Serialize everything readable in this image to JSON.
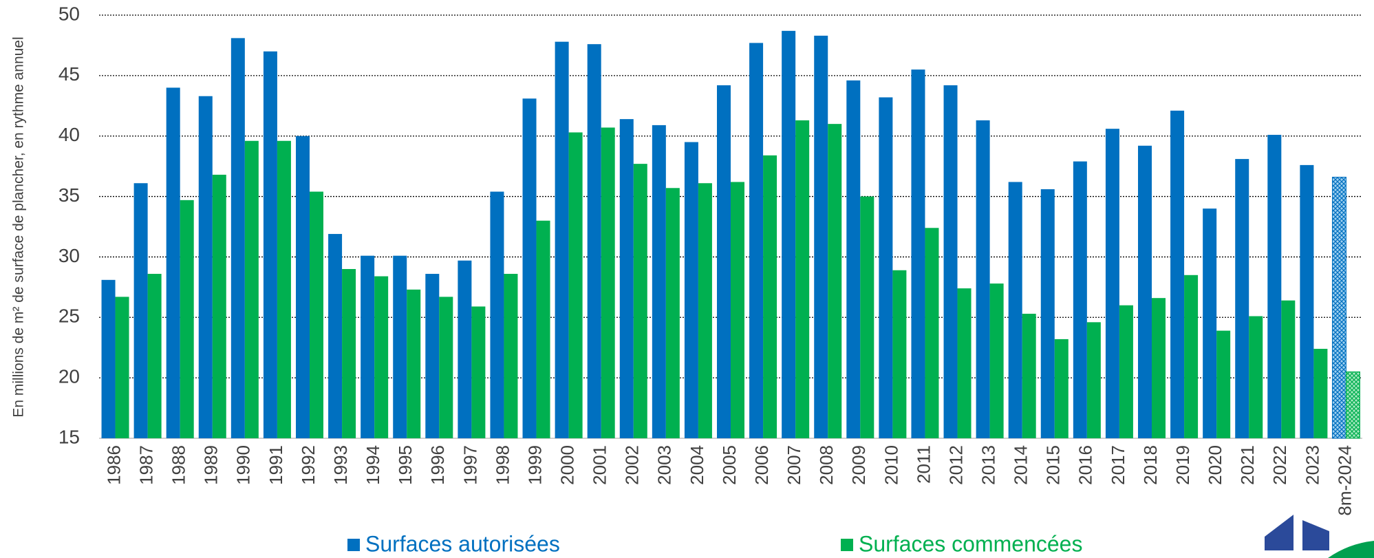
{
  "chart_data": {
    "type": "bar",
    "ylabel": "En millions de m² de surface de plancher, en rythme annuel",
    "categories": [
      "1986",
      "1987",
      "1988",
      "1989",
      "1990",
      "1991",
      "1992",
      "1993",
      "1994",
      "1995",
      "1996",
      "1997",
      "1998",
      "1999",
      "2000",
      "2001",
      "2002",
      "2003",
      "2004",
      "2005",
      "2006",
      "2007",
      "2008",
      "2009",
      "2010",
      "2011",
      "2012",
      "2013",
      "2014",
      "2015",
      "2016",
      "2017",
      "2018",
      "2019",
      "2020",
      "2021",
      "2022",
      "2023",
      "8m-2024"
    ],
    "series": [
      {
        "name": "Surfaces autorisées",
        "color": "#0070c0",
        "values": [
          28.1,
          36.1,
          44.0,
          43.3,
          48.1,
          47.0,
          40.0,
          31.9,
          30.1,
          30.1,
          28.6,
          29.7,
          35.4,
          43.1,
          47.8,
          47.6,
          41.4,
          40.9,
          39.5,
          44.2,
          47.7,
          48.7,
          48.3,
          44.6,
          43.2,
          45.5,
          44.2,
          41.3,
          36.2,
          35.6,
          37.9,
          40.6,
          39.2,
          42.1,
          34.0,
          38.1,
          40.1,
          37.6,
          36.6
        ]
      },
      {
        "name": "Surfaces commencées",
        "color": "#00b050",
        "values": [
          26.7,
          28.6,
          34.7,
          36.8,
          39.6,
          39.6,
          35.4,
          29.0,
          28.4,
          27.3,
          26.7,
          25.9,
          28.6,
          33.0,
          40.3,
          40.7,
          37.7,
          35.7,
          36.1,
          36.2,
          38.4,
          41.3,
          41.0,
          35.0,
          28.9,
          32.4,
          27.4,
          27.8,
          25.3,
          23.2,
          24.6,
          26.0,
          26.6,
          28.5,
          23.9,
          25.1,
          26.4,
          22.4,
          20.5
        ]
      }
    ],
    "hatched_index": 38,
    "ylim": [
      15,
      50
    ],
    "yticks": [
      15,
      20,
      25,
      30,
      35,
      40,
      45,
      50
    ],
    "grid": true
  }
}
